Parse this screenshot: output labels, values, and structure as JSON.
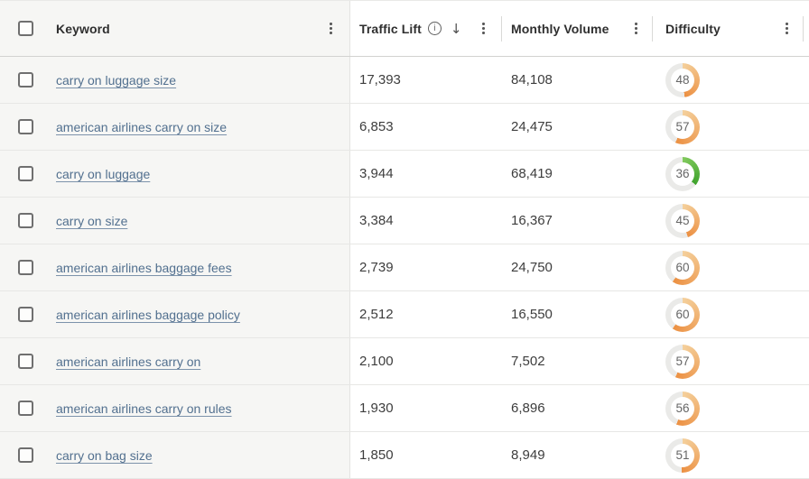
{
  "header": {
    "keyword": {
      "label": "Keyword"
    },
    "traffic_lift": {
      "label": "Traffic Lift",
      "sort_arrow": "↓",
      "info_glyph": "i"
    },
    "monthly_volume": {
      "label": "Monthly Volume"
    },
    "difficulty": {
      "label": "Difficulty"
    }
  },
  "icons": {
    "kebab": "kebab-menu-icon (three vertical dots)",
    "info": "info-circle-icon",
    "sort_desc": "arrow-down-icon",
    "checkbox": "checkbox-unchecked"
  },
  "colors": {
    "ring": "#eaeae8",
    "keyword_column_bg": "#f6f6f4",
    "link": "#52708f",
    "difficulty_palettes": {
      "orange": {
        "start": "#f4d09c",
        "end": "#ec9042"
      },
      "green": {
        "start": "#82ca5e",
        "end": "#3fa32d"
      }
    }
  },
  "chart_data": {
    "type": "table",
    "columns": [
      "Keyword",
      "Traffic Lift",
      "Monthly Volume",
      "Difficulty"
    ],
    "sorted_by": "Traffic Lift (descending)"
  },
  "rows": [
    {
      "keyword": "carry on luggage size",
      "traffic_lift": "17,393",
      "monthly_volume": "84,108",
      "difficulty": 48,
      "difficulty_level": "orange",
      "checked": false
    },
    {
      "keyword": "american airlines carry on size",
      "traffic_lift": "6,853",
      "monthly_volume": "24,475",
      "difficulty": 57,
      "difficulty_level": "orange",
      "checked": false
    },
    {
      "keyword": "carry on luggage",
      "traffic_lift": "3,944",
      "monthly_volume": "68,419",
      "difficulty": 36,
      "difficulty_level": "green",
      "checked": false
    },
    {
      "keyword": "carry on size",
      "traffic_lift": "3,384",
      "monthly_volume": "16,367",
      "difficulty": 45,
      "difficulty_level": "orange",
      "checked": false
    },
    {
      "keyword": "american airlines baggage fees",
      "traffic_lift": "2,739",
      "monthly_volume": "24,750",
      "difficulty": 60,
      "difficulty_level": "orange",
      "checked": false
    },
    {
      "keyword": "american airlines baggage policy",
      "traffic_lift": "2,512",
      "monthly_volume": "16,550",
      "difficulty": 60,
      "difficulty_level": "orange",
      "checked": false
    },
    {
      "keyword": "american airlines carry on",
      "traffic_lift": "2,100",
      "monthly_volume": "7,502",
      "difficulty": 57,
      "difficulty_level": "orange",
      "checked": false
    },
    {
      "keyword": "american airlines carry on rules",
      "traffic_lift": "1,930",
      "monthly_volume": "6,896",
      "difficulty": 56,
      "difficulty_level": "orange",
      "checked": false
    },
    {
      "keyword": "carry on bag size",
      "traffic_lift": "1,850",
      "monthly_volume": "8,949",
      "difficulty": 51,
      "difficulty_level": "orange",
      "checked": false
    }
  ]
}
